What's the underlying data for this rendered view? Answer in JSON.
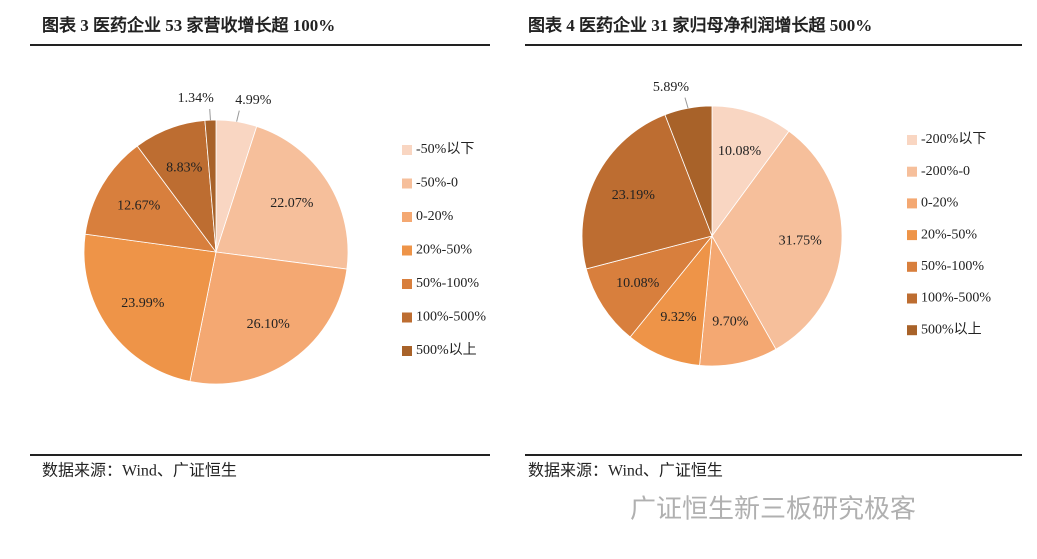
{
  "chart_data": [
    {
      "type": "pie",
      "title": "图表 3 医药企业 53 家营收增长超 100%",
      "categories": [
        "-50%以下",
        "-50%-0",
        "0-20%",
        "20%-50%",
        "50%-100%",
        "100%-500%",
        "500%以上"
      ],
      "values": [
        4.99,
        22.07,
        26.1,
        23.99,
        12.67,
        8.83,
        1.34
      ],
      "value_labels": [
        "4.99%",
        "22.07%",
        "26.10%",
        "23.99%",
        "12.67%",
        "8.83%",
        "1.34%"
      ],
      "colors": [
        "#f9d6c2",
        "#f6bf9b",
        "#f4a872",
        "#ee9448",
        "#d87f3d",
        "#bd6d31",
        "#a86229"
      ],
      "legend": "right",
      "source": "数据来源：Wind、广证恒生"
    },
    {
      "type": "pie",
      "title": "图表 4 医药企业 31 家归母净利润增长超 500%",
      "categories": [
        "-200%以下",
        "-200%-0",
        "0-20%",
        "20%-50%",
        "50%-100%",
        "100%-500%",
        "500%以上"
      ],
      "values": [
        10.08,
        31.75,
        9.7,
        9.32,
        10.08,
        23.19,
        5.89
      ],
      "value_labels": [
        "10.08%",
        "31.75%",
        "9.70%",
        "9.32%",
        "10.08%",
        "23.19%",
        "5.89%"
      ],
      "colors": [
        "#f9d6c2",
        "#f6bf9b",
        "#f4a872",
        "#ee9448",
        "#d87f3d",
        "#bd6d31",
        "#a86229"
      ],
      "legend": "right",
      "source": "数据来源：Wind、广证恒生"
    }
  ],
  "watermark": "广证恒生新三板研究极客"
}
